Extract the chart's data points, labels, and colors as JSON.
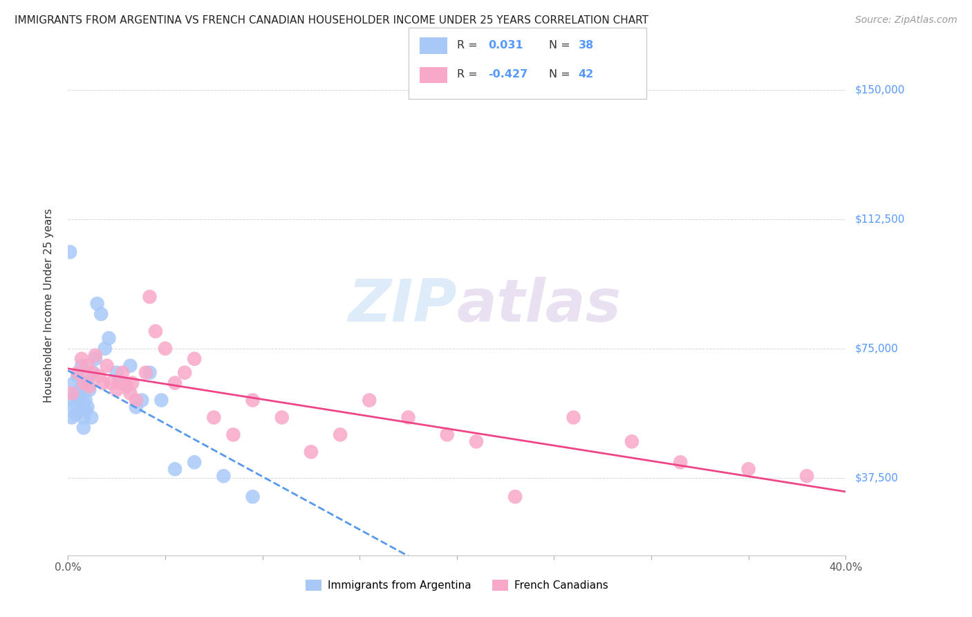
{
  "title": "IMMIGRANTS FROM ARGENTINA VS FRENCH CANADIAN HOUSEHOLDER INCOME UNDER 25 YEARS CORRELATION CHART",
  "source": "Source: ZipAtlas.com",
  "ylabel": "Householder Income Under 25 years",
  "ytick_labels": [
    "$37,500",
    "$75,000",
    "$112,500",
    "$150,000"
  ],
  "ytick_vals": [
    37500,
    75000,
    112500,
    150000
  ],
  "xlim": [
    0.0,
    0.4
  ],
  "ylim": [
    15000,
    160000
  ],
  "argentina_R": 0.031,
  "argentina_N": 38,
  "french_R": -0.427,
  "french_N": 42,
  "argentina_color": "#a8c8f8",
  "french_color": "#f8a8c8",
  "argentina_line_color": "#5599ee",
  "french_line_color": "#ee4488",
  "argentina_x": [
    0.001,
    0.002,
    0.002,
    0.003,
    0.003,
    0.004,
    0.004,
    0.005,
    0.005,
    0.006,
    0.006,
    0.007,
    0.007,
    0.008,
    0.008,
    0.009,
    0.009,
    0.01,
    0.01,
    0.011,
    0.012,
    0.013,
    0.014,
    0.015,
    0.017,
    0.019,
    0.021,
    0.025,
    0.028,
    0.032,
    0.035,
    0.038,
    0.042,
    0.048,
    0.055,
    0.065,
    0.08,
    0.095
  ],
  "argentina_y": [
    103000,
    60000,
    55000,
    65000,
    58000,
    62000,
    56000,
    67000,
    61000,
    63000,
    57000,
    70000,
    60000,
    55000,
    52000,
    60000,
    57000,
    65000,
    58000,
    63000,
    55000,
    68000,
    72000,
    88000,
    85000,
    75000,
    78000,
    68000,
    65000,
    70000,
    58000,
    60000,
    68000,
    60000,
    40000,
    42000,
    38000,
    32000
  ],
  "french_x": [
    0.002,
    0.005,
    0.007,
    0.008,
    0.01,
    0.011,
    0.012,
    0.014,
    0.016,
    0.018,
    0.02,
    0.022,
    0.025,
    0.026,
    0.028,
    0.03,
    0.032,
    0.033,
    0.035,
    0.04,
    0.042,
    0.045,
    0.05,
    0.055,
    0.06,
    0.065,
    0.075,
    0.085,
    0.095,
    0.11,
    0.125,
    0.14,
    0.155,
    0.175,
    0.195,
    0.21,
    0.23,
    0.26,
    0.29,
    0.315,
    0.35,
    0.38
  ],
  "french_y": [
    62000,
    68000,
    72000,
    65000,
    70000,
    64000,
    68000,
    73000,
    67000,
    65000,
    70000,
    65000,
    63000,
    65000,
    68000,
    64000,
    62000,
    65000,
    60000,
    68000,
    90000,
    80000,
    75000,
    65000,
    68000,
    72000,
    55000,
    50000,
    60000,
    55000,
    45000,
    50000,
    60000,
    55000,
    50000,
    48000,
    32000,
    55000,
    48000,
    42000,
    40000,
    38000
  ],
  "watermark_zip": "ZIP",
  "watermark_atlas": "atlas",
  "bottom_legend_label1": "Immigrants from Argentina",
  "bottom_legend_label2": "French Canadians"
}
